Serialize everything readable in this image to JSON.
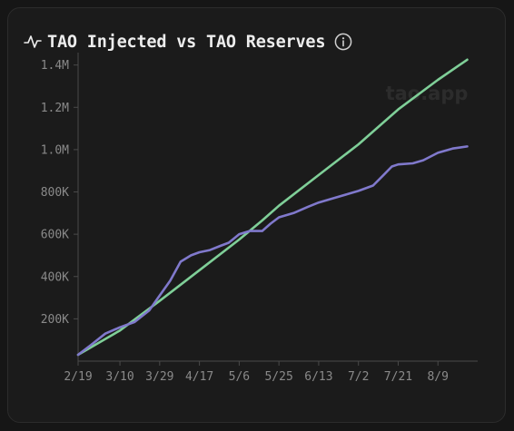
{
  "title": "TAO Injected vs TAO Reserves",
  "watermark": "tao.app",
  "icons": {
    "title_icon": "pulse-icon",
    "info_icon": "info-icon"
  },
  "colors": {
    "injected": "#7fcf98",
    "reserves": "#8079cc",
    "background": "#1b1b1b",
    "axis": "#4a4a4a",
    "text": "#8a8a8a"
  },
  "chart_data": {
    "type": "line",
    "title": "TAO Injected vs TAO Reserves",
    "xlabel": "",
    "ylabel": "",
    "ylim": [
      0,
      1450000
    ],
    "grid": false,
    "legend": "none",
    "x_ticks": [
      "2/19",
      "3/10",
      "3/29",
      "4/17",
      "5/6",
      "5/25",
      "6/13",
      "7/2",
      "7/21",
      "8/9"
    ],
    "y_ticks": [
      "200K",
      "400K",
      "600K",
      "800K",
      "1.0M",
      "1.2M",
      "1.4M"
    ],
    "y_tick_values": [
      200000,
      400000,
      600000,
      800000,
      1000000,
      1200000,
      1400000
    ],
    "series": [
      {
        "key": "injected",
        "color": "#7fcf98",
        "points": [
          [
            "2/19",
            30000
          ],
          [
            "3/10",
            145000
          ],
          [
            "3/29",
            285000
          ],
          [
            "4/17",
            430000
          ],
          [
            "5/6",
            575000
          ],
          [
            "5/17",
            665000
          ],
          [
            "5/25",
            735000
          ],
          [
            "6/13",
            880000
          ],
          [
            "7/2",
            1025000
          ],
          [
            "7/21",
            1190000
          ],
          [
            "8/9",
            1330000
          ],
          [
            "8/23",
            1425000
          ]
        ]
      },
      {
        "key": "reserves",
        "color": "#8079cc",
        "points": [
          [
            "2/19",
            30000
          ],
          [
            "2/25",
            75000
          ],
          [
            "3/3",
            130000
          ],
          [
            "3/10",
            160000
          ],
          [
            "3/17",
            185000
          ],
          [
            "3/24",
            240000
          ],
          [
            "3/29",
            310000
          ],
          [
            "4/3",
            380000
          ],
          [
            "4/8",
            470000
          ],
          [
            "4/13",
            500000
          ],
          [
            "4/17",
            515000
          ],
          [
            "4/22",
            525000
          ],
          [
            "4/27",
            545000
          ],
          [
            "5/1",
            560000
          ],
          [
            "5/6",
            600000
          ],
          [
            "5/11",
            615000
          ],
          [
            "5/17",
            615000
          ],
          [
            "5/21",
            650000
          ],
          [
            "5/25",
            680000
          ],
          [
            "6/1",
            700000
          ],
          [
            "6/8",
            730000
          ],
          [
            "6/13",
            750000
          ],
          [
            "6/20",
            770000
          ],
          [
            "6/27",
            790000
          ],
          [
            "7/2",
            805000
          ],
          [
            "7/9",
            830000
          ],
          [
            "7/14",
            880000
          ],
          [
            "7/18",
            920000
          ],
          [
            "7/21",
            930000
          ],
          [
            "7/28",
            935000
          ],
          [
            "8/2",
            950000
          ],
          [
            "8/9",
            985000
          ],
          [
            "8/16",
            1005000
          ],
          [
            "8/23",
            1015000
          ]
        ]
      }
    ]
  }
}
